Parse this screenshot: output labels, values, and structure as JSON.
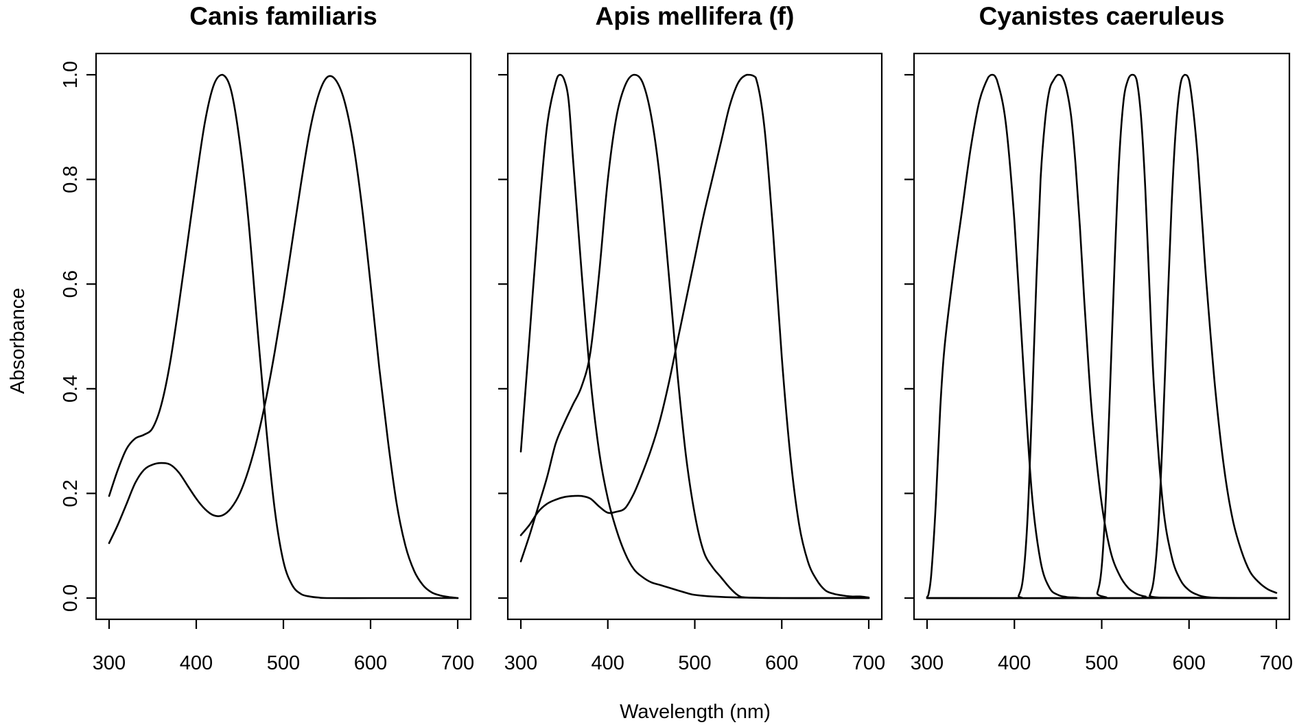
{
  "figure": {
    "xlabel": "Wavelength (nm)",
    "ylabel": "Absorbance"
  },
  "chart_data": [
    {
      "type": "line",
      "title": "Canis familiaris",
      "xlim": [
        300,
        700
      ],
      "ylim": [
        0,
        1
      ],
      "xticks": [
        300,
        400,
        500,
        600,
        700
      ],
      "yticks": [
        0,
        0.2,
        0.4,
        0.6,
        0.8,
        1
      ],
      "grid": false,
      "line_color": "#000000",
      "series": [
        {
          "x": [
            300,
            310,
            320,
            330,
            340,
            350,
            360,
            370,
            380,
            390,
            400,
            410,
            420,
            430,
            440,
            450,
            460,
            470,
            480,
            490,
            500,
            510,
            520,
            530,
            540,
            550,
            600,
            650,
            700
          ],
          "y": [
            0.195,
            0.245,
            0.285,
            0.305,
            0.312,
            0.325,
            0.37,
            0.45,
            0.56,
            0.68,
            0.8,
            0.91,
            0.98,
            1.0,
            0.97,
            0.87,
            0.72,
            0.52,
            0.33,
            0.17,
            0.07,
            0.025,
            0.008,
            0.003,
            0.001,
            0,
            0,
            0,
            0
          ]
        },
        {
          "x": [
            300,
            310,
            320,
            330,
            340,
            350,
            360,
            370,
            380,
            390,
            400,
            410,
            420,
            430,
            440,
            450,
            460,
            470,
            480,
            490,
            500,
            510,
            520,
            530,
            540,
            550,
            560,
            570,
            580,
            590,
            600,
            610,
            620,
            630,
            640,
            650,
            660,
            670,
            680,
            690,
            700
          ],
          "y": [
            0.105,
            0.14,
            0.18,
            0.22,
            0.245,
            0.255,
            0.258,
            0.255,
            0.24,
            0.215,
            0.19,
            0.17,
            0.158,
            0.158,
            0.172,
            0.2,
            0.245,
            0.305,
            0.38,
            0.47,
            0.57,
            0.68,
            0.79,
            0.89,
            0.96,
            0.995,
            0.99,
            0.95,
            0.87,
            0.75,
            0.6,
            0.44,
            0.3,
            0.18,
            0.1,
            0.052,
            0.025,
            0.011,
            0.005,
            0.002,
            0
          ]
        }
      ]
    },
    {
      "type": "line",
      "title": "Apis mellifera (f)",
      "xlim": [
        300,
        700
      ],
      "ylim": [
        0,
        1
      ],
      "xticks": [
        300,
        400,
        500,
        600,
        700
      ],
      "yticks": [
        0,
        0.2,
        0.4,
        0.6,
        0.8,
        1
      ],
      "grid": false,
      "line_color": "#000000",
      "series": [
        {
          "x": [
            300,
            310,
            320,
            330,
            340,
            345,
            350,
            355,
            360,
            370,
            380,
            390,
            400,
            410,
            420,
            430,
            440,
            450,
            460,
            470,
            480,
            490,
            500,
            520,
            550,
            600,
            650,
            700
          ],
          "y": [
            0.28,
            0.5,
            0.72,
            0.9,
            0.985,
            1.0,
            0.99,
            0.95,
            0.84,
            0.62,
            0.42,
            0.28,
            0.19,
            0.13,
            0.085,
            0.055,
            0.04,
            0.03,
            0.025,
            0.02,
            0.015,
            0.01,
            0.006,
            0.003,
            0.001,
            0,
            0,
            0
          ]
        },
        {
          "x": [
            300,
            310,
            320,
            330,
            340,
            350,
            360,
            370,
            380,
            390,
            400,
            410,
            420,
            430,
            440,
            450,
            460,
            470,
            480,
            490,
            500,
            510,
            520,
            530,
            540,
            550,
            560,
            600,
            650,
            700
          ],
          "y": [
            0.07,
            0.12,
            0.175,
            0.23,
            0.295,
            0.335,
            0.37,
            0.405,
            0.47,
            0.62,
            0.8,
            0.92,
            0.98,
            1.0,
            0.985,
            0.92,
            0.8,
            0.62,
            0.43,
            0.27,
            0.16,
            0.09,
            0.06,
            0.04,
            0.02,
            0.005,
            0.001,
            0,
            0,
            0
          ]
        },
        {
          "x": [
            300,
            310,
            320,
            330,
            340,
            350,
            360,
            370,
            380,
            390,
            400,
            410,
            420,
            430,
            440,
            450,
            460,
            470,
            480,
            490,
            500,
            510,
            520,
            530,
            540,
            550,
            560,
            570,
            580,
            590,
            600,
            610,
            620,
            630,
            640,
            650,
            660,
            670,
            680,
            690,
            700
          ],
          "y": [
            0.12,
            0.14,
            0.165,
            0.18,
            0.188,
            0.193,
            0.195,
            0.195,
            0.19,
            0.175,
            0.163,
            0.165,
            0.172,
            0.2,
            0.24,
            0.285,
            0.34,
            0.41,
            0.49,
            0.57,
            0.65,
            0.73,
            0.8,
            0.87,
            0.94,
            0.985,
            1.0,
            0.995,
            0.9,
            0.7,
            0.46,
            0.27,
            0.14,
            0.07,
            0.035,
            0.015,
            0.008,
            0.005,
            0.003,
            0.003,
            0.001
          ]
        }
      ]
    },
    {
      "type": "line",
      "title": "Cyanistes caeruleus",
      "xlim": [
        300,
        700
      ],
      "ylim": [
        0,
        1
      ],
      "xticks": [
        300,
        400,
        500,
        600,
        700
      ],
      "yticks": [
        0,
        0.2,
        0.4,
        0.6,
        0.8,
        1
      ],
      "grid": false,
      "line_color": "#000000",
      "series": [
        {
          "x": [
            300,
            302,
            305,
            310,
            315,
            320,
            330,
            340,
            350,
            360,
            370,
            375,
            380,
            390,
            400,
            410,
            420,
            430,
            440,
            450,
            460,
            470,
            480,
            500,
            550,
            700
          ],
          "y": [
            0.002,
            0.01,
            0.05,
            0.18,
            0.36,
            0.48,
            0.62,
            0.74,
            0.86,
            0.95,
            0.995,
            1.0,
            0.99,
            0.91,
            0.72,
            0.45,
            0.2,
            0.07,
            0.02,
            0.006,
            0.002,
            0.001,
            0,
            0,
            0,
            0
          ]
        },
        {
          "x": [
            300,
            400,
            405,
            410,
            415,
            420,
            425,
            430,
            435,
            440,
            445,
            450,
            455,
            460,
            465,
            470,
            475,
            480,
            485,
            490,
            500,
            510,
            520,
            530,
            540,
            550,
            560,
            700
          ],
          "y": [
            0,
            0,
            0.005,
            0.04,
            0.15,
            0.36,
            0.6,
            0.8,
            0.91,
            0.97,
            0.99,
            1.0,
            0.995,
            0.97,
            0.92,
            0.83,
            0.71,
            0.57,
            0.44,
            0.33,
            0.18,
            0.09,
            0.045,
            0.02,
            0.008,
            0.003,
            0.001,
            0
          ]
        },
        {
          "x": [
            300,
            490,
            495,
            500,
            505,
            510,
            515,
            520,
            525,
            530,
            535,
            540,
            545,
            550,
            555,
            560,
            570,
            580,
            590,
            600,
            610,
            620,
            640,
            700
          ],
          "y": [
            0,
            0,
            0.01,
            0.06,
            0.2,
            0.42,
            0.65,
            0.84,
            0.95,
            0.99,
            1.0,
            0.99,
            0.92,
            0.78,
            0.58,
            0.4,
            0.18,
            0.08,
            0.035,
            0.015,
            0.006,
            0.002,
            0,
            0
          ]
        },
        {
          "x": [
            300,
            550,
            555,
            560,
            565,
            570,
            575,
            580,
            585,
            590,
            595,
            600,
            605,
            610,
            615,
            620,
            630,
            640,
            650,
            660,
            670,
            680,
            690,
            700
          ],
          "y": [
            0,
            0,
            0.005,
            0.04,
            0.14,
            0.32,
            0.54,
            0.75,
            0.9,
            0.98,
            1.0,
            0.99,
            0.93,
            0.84,
            0.72,
            0.6,
            0.4,
            0.25,
            0.15,
            0.09,
            0.05,
            0.03,
            0.017,
            0.01
          ]
        }
      ]
    }
  ]
}
